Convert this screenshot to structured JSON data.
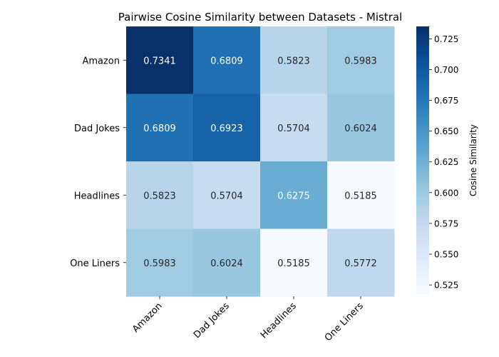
{
  "chart_data": {
    "type": "heatmap",
    "title": "Pairwise Cosine Similarity between Datasets - Mistral",
    "rows": [
      "Amazon",
      "Dad Jokes",
      "Headlines",
      "One Liners"
    ],
    "columns": [
      "Amazon",
      "Dad Jokes",
      "Headlines",
      "One Liners"
    ],
    "values": [
      [
        0.7341,
        0.6809,
        0.5823,
        0.5983
      ],
      [
        0.6809,
        0.6923,
        0.5704,
        0.6024
      ],
      [
        0.5823,
        0.5704,
        0.6275,
        0.5185
      ],
      [
        0.5983,
        0.6024,
        0.5185,
        0.5772
      ]
    ],
    "cell_labels": [
      [
        "0.7341",
        "0.6809",
        "0.5823",
        "0.5983"
      ],
      [
        "0.6809",
        "0.6923",
        "0.5704",
        "0.6024"
      ],
      [
        "0.5823",
        "0.5704",
        "0.6275",
        "0.5185"
      ],
      [
        "0.5983",
        "0.6024",
        "0.5185",
        "0.5772"
      ]
    ],
    "colorbar": {
      "label": "Cosine Similarity",
      "vmin": 0.5185,
      "vmax": 0.7341,
      "ticks": [
        "0.525",
        "0.550",
        "0.575",
        "0.600",
        "0.625",
        "0.650",
        "0.675",
        "0.700",
        "0.725"
      ],
      "colormap": "Blues"
    }
  }
}
